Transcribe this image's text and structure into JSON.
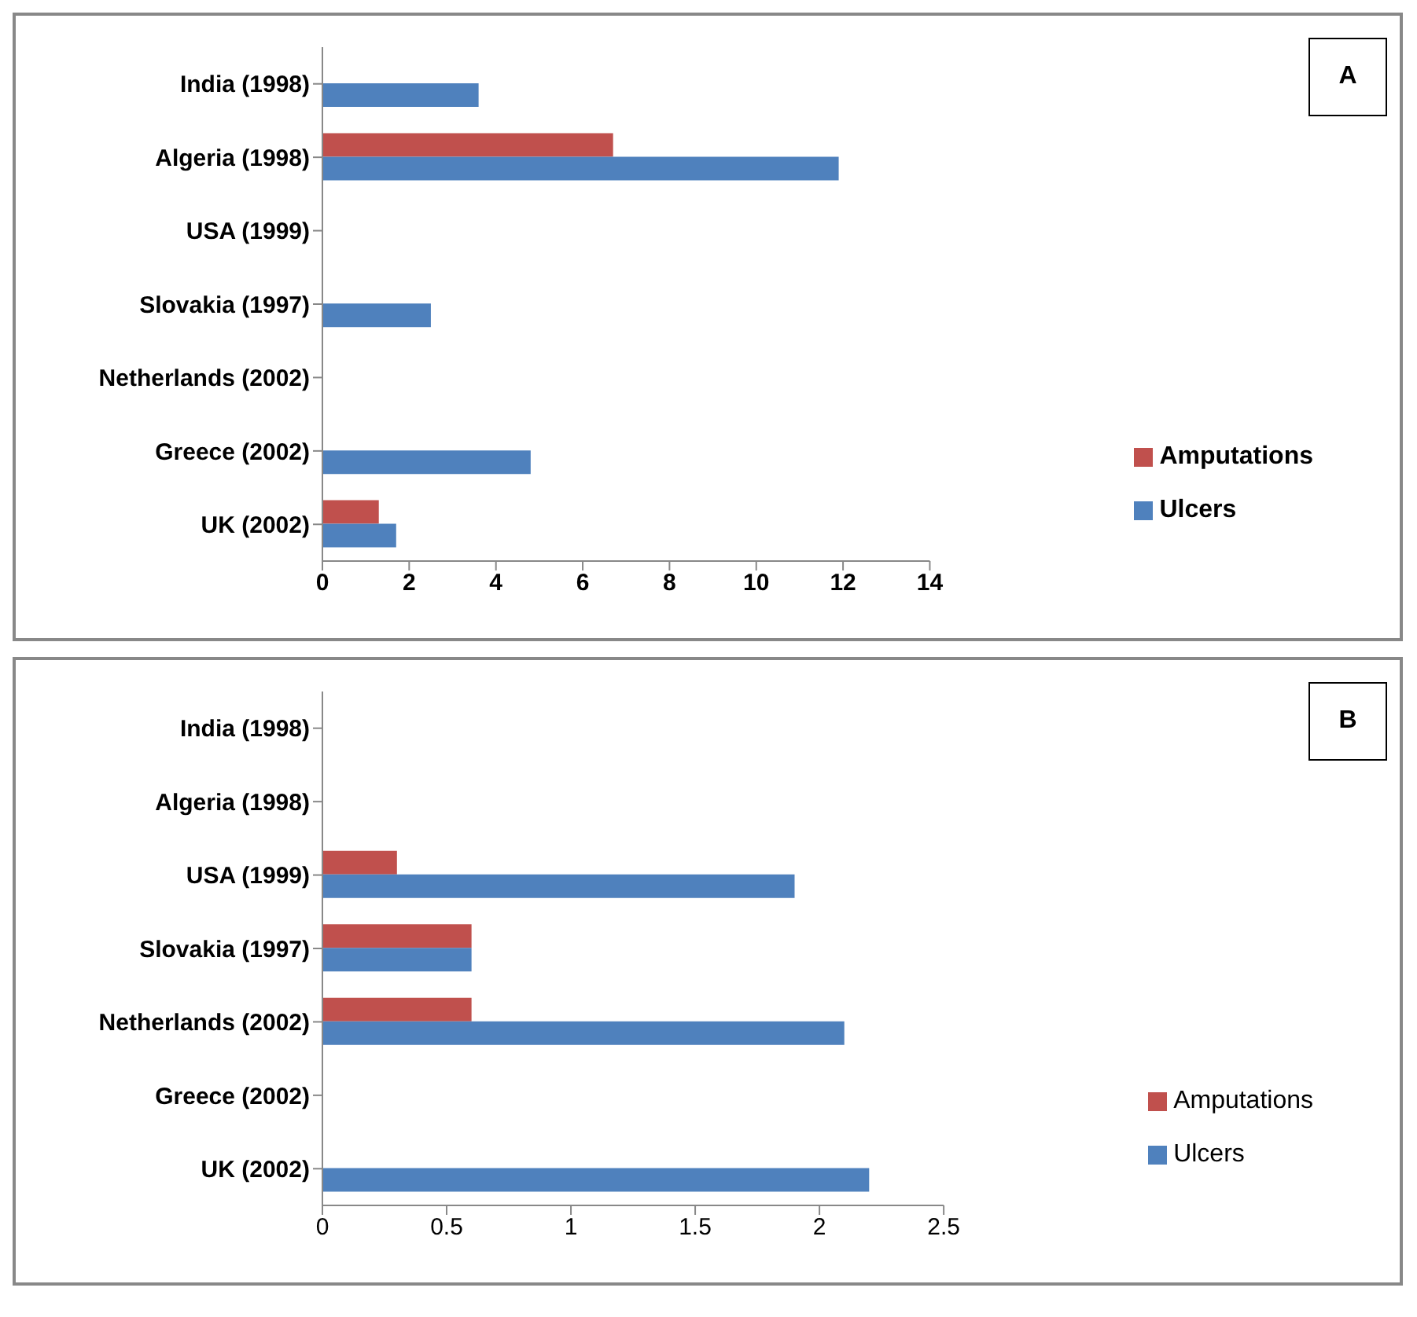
{
  "chart_data": [
    {
      "type": "bar",
      "orientation": "horizontal",
      "categories": [
        "India (1998)",
        "Algeria (1998)",
        "USA (1999)",
        "Slovakia (1997)",
        "Netherlands (2002)",
        "Greece (2002)",
        "UK (2002)"
      ],
      "series": [
        {
          "name": "Amputations",
          "color": "#c0504d",
          "values": [
            0,
            6.7,
            0,
            0,
            0,
            0,
            1.3
          ]
        },
        {
          "name": "Ulcers",
          "color": "#4f81bd",
          "values": [
            3.6,
            11.9,
            0,
            2.5,
            0,
            4.8,
            1.7
          ]
        }
      ],
      "xlim": [
        0,
        14
      ],
      "xticks": [
        0,
        2,
        4,
        6,
        8,
        10,
        12,
        14
      ],
      "grid": false,
      "legend": "bottom right",
      "annotations": [
        "A"
      ]
    },
    {
      "type": "bar",
      "orientation": "horizontal",
      "categories": [
        "India (1998)",
        "Algeria (1998)",
        "USA (1999)",
        "Slovakia (1997)",
        "Netherlands (2002)",
        "Greece (2002)",
        "UK (2002)"
      ],
      "series": [
        {
          "name": "Amputations",
          "color": "#c0504d",
          "values": [
            0,
            0,
            0.3,
            0.6,
            0.6,
            0,
            0
          ]
        },
        {
          "name": "Ulcers",
          "color": "#4f81bd",
          "values": [
            0,
            0,
            1.9,
            0.6,
            2.1,
            0,
            2.2
          ]
        }
      ],
      "xlim": [
        0,
        2.5
      ],
      "xticks": [
        0,
        0.5,
        1,
        1.5,
        2,
        2.5
      ],
      "grid": false,
      "legend": "bottom right",
      "annotations": [
        "B"
      ]
    }
  ]
}
